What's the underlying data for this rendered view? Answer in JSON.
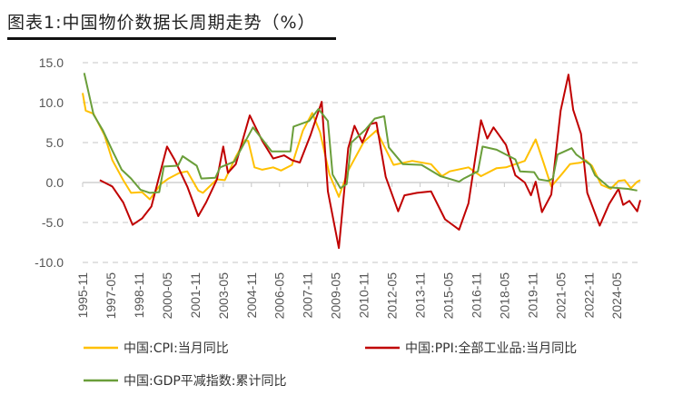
{
  "title": "图表1:中国物价数据长周期走势（%）",
  "chart_data": {
    "type": "line",
    "title": "图表1:中国物价数据长周期走势（%）",
    "xlabel": "",
    "ylabel": "",
    "ylim": [
      -10,
      15
    ],
    "yticks": [
      "15.0",
      "10.0",
      "5.0",
      "0.0",
      "-5.0",
      "-10.0"
    ],
    "ytick_values": [
      15,
      10,
      5,
      0,
      -5,
      -10
    ],
    "xticks": [
      "1995-11",
      "1997-05",
      "1998-11",
      "2000-05",
      "2001-11",
      "2003-05",
      "2004-11",
      "2006-05",
      "2007-11",
      "2009-05",
      "2010-11",
      "2012-05",
      "2013-11",
      "2015-05",
      "2016-11",
      "2018-05",
      "2019-11",
      "2021-05",
      "2022-11",
      "2024-05"
    ],
    "xrange": [
      "1995-11",
      "2025-08"
    ],
    "grid": "horizontal dashed",
    "legend_placement": "bottom",
    "series": [
      {
        "name": "中国:CPI:当月同比",
        "color": "#FFC000",
        "points": [
          [
            "1995-11",
            11.2
          ],
          [
            "1996-01",
            9.0
          ],
          [
            "1996-06",
            8.6
          ],
          [
            "1997-01",
            5.9
          ],
          [
            "1997-06",
            2.8
          ],
          [
            "1998-01",
            0.3
          ],
          [
            "1998-06",
            -1.3
          ],
          [
            "1999-01",
            -1.2
          ],
          [
            "1999-06",
            -2.1
          ],
          [
            "2000-01",
            -0.2
          ],
          [
            "2000-06",
            0.5
          ],
          [
            "2001-01",
            1.2
          ],
          [
            "2001-06",
            1.4
          ],
          [
            "2002-01",
            -1.0
          ],
          [
            "2002-04",
            -1.3
          ],
          [
            "2003-01",
            0.4
          ],
          [
            "2003-06",
            0.3
          ],
          [
            "2004-01",
            3.2
          ],
          [
            "2004-07",
            5.3
          ],
          [
            "2004-09",
            5.2
          ],
          [
            "2005-01",
            1.9
          ],
          [
            "2005-06",
            1.6
          ],
          [
            "2006-01",
            1.9
          ],
          [
            "2006-06",
            1.5
          ],
          [
            "2007-01",
            2.2
          ],
          [
            "2007-08",
            6.5
          ],
          [
            "2008-02",
            8.7
          ],
          [
            "2008-07",
            6.3
          ],
          [
            "2009-01",
            1.0
          ],
          [
            "2009-07",
            -1.8
          ],
          [
            "2010-01",
            1.5
          ],
          [
            "2010-11",
            5.1
          ],
          [
            "2011-07",
            6.5
          ],
          [
            "2012-06",
            2.2
          ],
          [
            "2013-06",
            2.7
          ],
          [
            "2014-06",
            2.3
          ],
          [
            "2015-01",
            0.8
          ],
          [
            "2015-06",
            1.4
          ],
          [
            "2016-06",
            1.9
          ],
          [
            "2017-02",
            0.8
          ],
          [
            "2017-12",
            1.8
          ],
          [
            "2018-06",
            1.9
          ],
          [
            "2019-06",
            2.7
          ],
          [
            "2020-01",
            5.4
          ],
          [
            "2020-06",
            2.5
          ],
          [
            "2020-11",
            -0.5
          ],
          [
            "2021-06",
            1.1
          ],
          [
            "2021-11",
            2.3
          ],
          [
            "2022-06",
            2.5
          ],
          [
            "2022-09",
            2.8
          ],
          [
            "2023-01",
            2.1
          ],
          [
            "2023-07",
            -0.3
          ],
          [
            "2024-01",
            -0.8
          ],
          [
            "2024-06",
            0.2
          ],
          [
            "2024-10",
            0.3
          ],
          [
            "2025-02",
            -0.7
          ],
          [
            "2025-06",
            0.1
          ],
          [
            "2025-08",
            0.3
          ]
        ]
      },
      {
        "name": "中国:PPI:全部工业品:当月同比",
        "color": "#C00000",
        "points": [
          [
            "1996-10",
            0.3
          ],
          [
            "1997-06",
            -0.5
          ],
          [
            "1998-01",
            -2.5
          ],
          [
            "1998-07",
            -5.3
          ],
          [
            "1999-01",
            -4.5
          ],
          [
            "1999-07",
            -3.0
          ],
          [
            "2000-01",
            1.5
          ],
          [
            "2000-05",
            4.5
          ],
          [
            "2000-10",
            2.8
          ],
          [
            "2001-06",
            -0.5
          ],
          [
            "2002-01",
            -4.2
          ],
          [
            "2002-06",
            -2.5
          ],
          [
            "2003-01",
            0.4
          ],
          [
            "2003-05",
            4.5
          ],
          [
            "2003-08",
            1.2
          ],
          [
            "2004-01",
            2.3
          ],
          [
            "2004-10",
            8.4
          ],
          [
            "2005-06",
            5.2
          ],
          [
            "2006-01",
            3.0
          ],
          [
            "2006-08",
            3.4
          ],
          [
            "2007-01",
            2.8
          ],
          [
            "2007-06",
            2.5
          ],
          [
            "2008-01",
            6.0
          ],
          [
            "2008-08",
            10.1
          ],
          [
            "2008-12",
            -1.1
          ],
          [
            "2009-07",
            -8.2
          ],
          [
            "2010-01",
            4.3
          ],
          [
            "2010-05",
            7.1
          ],
          [
            "2010-10",
            5.0
          ],
          [
            "2011-03",
            7.3
          ],
          [
            "2011-07",
            7.5
          ],
          [
            "2012-01",
            0.7
          ],
          [
            "2012-09",
            -3.6
          ],
          [
            "2013-01",
            -1.6
          ],
          [
            "2013-09",
            -1.3
          ],
          [
            "2014-06",
            -1.1
          ],
          [
            "2015-03",
            -4.6
          ],
          [
            "2015-12",
            -5.9
          ],
          [
            "2016-06",
            -2.6
          ],
          [
            "2017-02",
            7.8
          ],
          [
            "2017-06",
            5.5
          ],
          [
            "2017-10",
            6.9
          ],
          [
            "2018-06",
            4.7
          ],
          [
            "2018-12",
            0.9
          ],
          [
            "2019-06",
            0.0
          ],
          [
            "2019-10",
            -1.6
          ],
          [
            "2020-01",
            0.1
          ],
          [
            "2020-05",
            -3.7
          ],
          [
            "2020-11",
            -1.5
          ],
          [
            "2021-05",
            9.0
          ],
          [
            "2021-10",
            13.5
          ],
          [
            "2022-01",
            9.1
          ],
          [
            "2022-06",
            6.1
          ],
          [
            "2022-10",
            -1.3
          ],
          [
            "2023-06",
            -5.4
          ],
          [
            "2023-12",
            -2.7
          ],
          [
            "2024-06",
            -0.8
          ],
          [
            "2024-09",
            -2.8
          ],
          [
            "2025-01",
            -2.3
          ],
          [
            "2025-06",
            -3.6
          ],
          [
            "2025-08",
            -2.2
          ]
        ]
      },
      {
        "name": "中国:GDP平减指数:累计同比",
        "color": "#6A9E3A",
        "points": [
          [
            "1995-12",
            13.7
          ],
          [
            "1996-06",
            8.5
          ],
          [
            "1996-12",
            6.5
          ],
          [
            "1997-06",
            4.0
          ],
          [
            "1997-12",
            1.6
          ],
          [
            "1998-06",
            0.5
          ],
          [
            "1998-12",
            -0.9
          ],
          [
            "1999-06",
            -1.3
          ],
          [
            "1999-12",
            -1.2
          ],
          [
            "2000-03",
            2.0
          ],
          [
            "2000-12",
            2.1
          ],
          [
            "2001-03",
            3.3
          ],
          [
            "2001-12",
            2.1
          ],
          [
            "2002-03",
            0.5
          ],
          [
            "2002-12",
            0.6
          ],
          [
            "2003-03",
            1.9
          ],
          [
            "2003-12",
            2.6
          ],
          [
            "2004-12",
            6.9
          ],
          [
            "2005-12",
            3.9
          ],
          [
            "2006-12",
            3.9
          ],
          [
            "2007-02",
            7.0
          ],
          [
            "2007-12",
            7.7
          ],
          [
            "2008-06",
            9.2
          ],
          [
            "2008-12",
            7.7
          ],
          [
            "2009-03",
            1.0
          ],
          [
            "2009-08",
            -0.7
          ],
          [
            "2009-12",
            -0.2
          ],
          [
            "2010-03",
            5.0
          ],
          [
            "2010-12",
            6.6
          ],
          [
            "2011-06",
            8.0
          ],
          [
            "2011-12",
            8.3
          ],
          [
            "2012-03",
            4.4
          ],
          [
            "2012-12",
            2.3
          ],
          [
            "2013-12",
            2.2
          ],
          [
            "2014-12",
            0.8
          ],
          [
            "2015-12",
            0.1
          ],
          [
            "2016-03",
            0.5
          ],
          [
            "2016-12",
            1.4
          ],
          [
            "2017-03",
            4.5
          ],
          [
            "2017-12",
            4.1
          ],
          [
            "2018-12",
            2.9
          ],
          [
            "2019-03",
            1.4
          ],
          [
            "2019-12",
            1.3
          ],
          [
            "2020-03",
            0.4
          ],
          [
            "2020-09",
            0.2
          ],
          [
            "2020-12",
            0.5
          ],
          [
            "2021-03",
            3.5
          ],
          [
            "2021-12",
            4.3
          ],
          [
            "2022-03",
            3.5
          ],
          [
            "2022-12",
            2.2
          ],
          [
            "2023-03",
            0.9
          ],
          [
            "2023-12",
            -0.6
          ],
          [
            "2024-12",
            -0.8
          ],
          [
            "2025-06",
            -1.0
          ]
        ]
      }
    ]
  }
}
